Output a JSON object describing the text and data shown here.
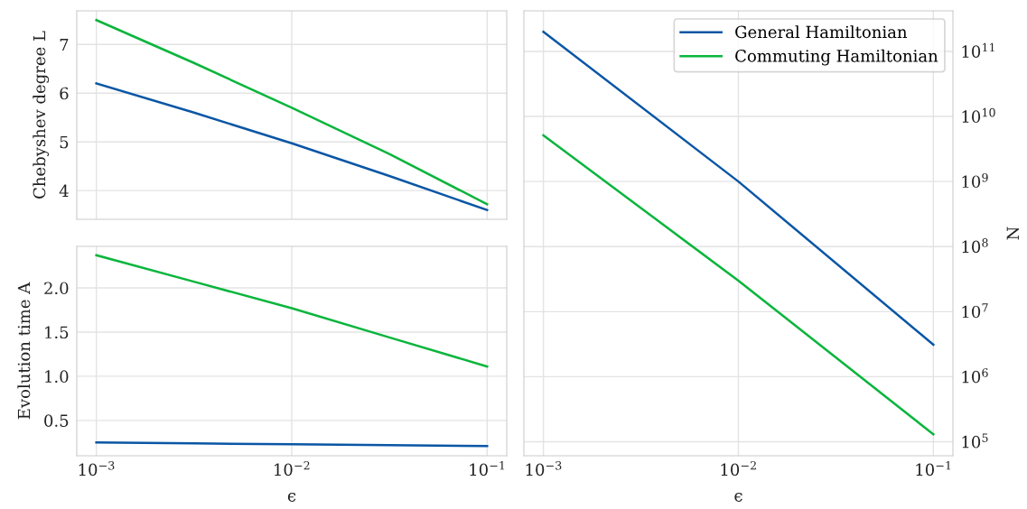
{
  "chart_data": [
    {
      "type": "line",
      "ylabel": "Chebyshev degree L",
      "x": [
        0.001,
        0.00316,
        0.01,
        0.0316,
        0.1
      ],
      "xlim": [
        0.000794,
        0.126
      ],
      "xticks": [
        {
          "value": 0.001,
          "label": null
        },
        {
          "value": 0.01,
          "label": null
        },
        {
          "value": 0.1,
          "label": null
        }
      ],
      "ylim": [
        3.41,
        7.69
      ],
      "yticks": [
        4,
        5,
        6,
        7
      ],
      "log": "x",
      "grid": true,
      "tick_labels": "y",
      "series": [
        {
          "color": "#0a56a5",
          "values": [
            6.2,
            5.6,
            4.97,
            4.3,
            3.6
          ]
        },
        {
          "color": "#0ab53c",
          "values": [
            7.5,
            6.62,
            5.7,
            4.75,
            3.72
          ]
        }
      ]
    },
    {
      "type": "line",
      "ylabel": "Evolution time A",
      "xlabel": "ϵ",
      "x": [
        0.001,
        0.00316,
        0.01,
        0.0316,
        0.1
      ],
      "xlim": [
        0.000794,
        0.126
      ],
      "xticks": [
        {
          "value": 0.001,
          "label": "10$^{−3}$"
        },
        {
          "value": 0.01,
          "label": "10$^{−2}$"
        },
        {
          "value": 0.1,
          "label": "10$^{−1}$"
        }
      ],
      "ylim": [
        0.1,
        2.47
      ],
      "yticks": [
        0.5,
        {
          "value": 1,
          "label": "1.0"
        },
        1.5,
        {
          "value": 2,
          "label": "2.0"
        }
      ],
      "log": "x",
      "grid": true,
      "series": [
        {
          "color": "#0a56a5",
          "values": [
            0.25,
            0.24,
            0.23,
            0.22,
            0.21
          ]
        },
        {
          "color": "#0ab53c",
          "values": [
            2.37,
            2.07,
            1.77,
            1.44,
            1.11
          ]
        }
      ]
    },
    {
      "type": "line",
      "xlabel": "ϵ",
      "ylabel": "N",
      "x": [
        0.001,
        0.01,
        0.1
      ],
      "xlim": [
        0.000794,
        0.126
      ],
      "xticks": [
        {
          "value": 0.001,
          "label": "10$^{−3}$"
        },
        {
          "value": 0.01,
          "label": "10$^{−2}$"
        },
        {
          "value": 0.1,
          "label": "10$^{−1}$"
        }
      ],
      "ylim": [
        61000,
        420000000000.0
      ],
      "yticks": [
        {
          "value": 100000,
          "label": "10$^{5}$"
        },
        {
          "value": 1000000,
          "label": "10$^{6}$"
        },
        {
          "value": 10000000,
          "label": "10$^{7}$"
        },
        {
          "value": 100000000,
          "label": "10$^{8}$"
        },
        {
          "value": 1000000000,
          "label": "10$^{9}$"
        },
        {
          "value": 10000000000,
          "label": "10$^{10}$"
        },
        {
          "value": 100000000000,
          "label": "10$^{11}$"
        }
      ],
      "log": "xy",
      "grid": true,
      "legend": "top right",
      "series": [
        {
          "name": "General Hamiltonian",
          "color": "#0a56a5",
          "values": [
            200000000000.0,
            1000000000.0,
            3100000.0
          ]
        },
        {
          "name": "Commuting Hamiltonian",
          "color": "#0ab53c",
          "values": [
            5100000000.0,
            30000000.0,
            130000.0
          ]
        }
      ]
    }
  ]
}
